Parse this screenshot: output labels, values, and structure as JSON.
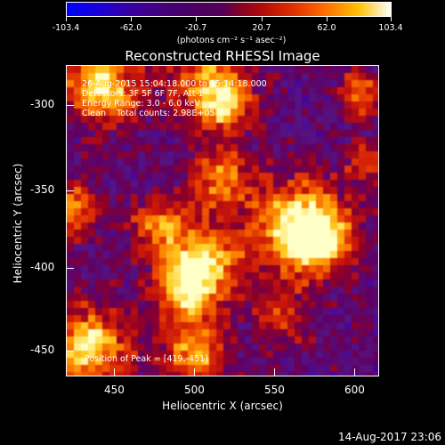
{
  "colorbar": {
    "ticks": [
      "-103.4",
      "-62.0",
      "-20.7",
      "20.7",
      "62.0",
      "103.4"
    ],
    "units": "(photons cm⁻² s⁻¹ asec⁻²)"
  },
  "plot": {
    "title": "Reconstructed RHESSI Image",
    "annotations": {
      "time_range": "26-Aug-2015 15:04:18.000 to 15:14:18.000",
      "detectors": "Detectors: 3F 5F 6F 7F, Att 1",
      "energy": "Energy Range: 3.0 - 6.0 keV",
      "method": "Clean    Total counts: 2.98E+05",
      "peak": "Position of Peak = [419,-451]"
    },
    "xlabel": "Heliocentric X (arcsec)",
    "ylabel": "Heliocentric Y (arcsec)",
    "xticks": [
      "450",
      "500",
      "550",
      "600"
    ],
    "yticks": [
      "-300",
      "-350",
      "-400",
      "-450"
    ]
  },
  "footer": {
    "timestamp": "14-Aug-2017 23:06"
  },
  "colors": {
    "background": "#000000",
    "foreground": "#ffffff"
  }
}
